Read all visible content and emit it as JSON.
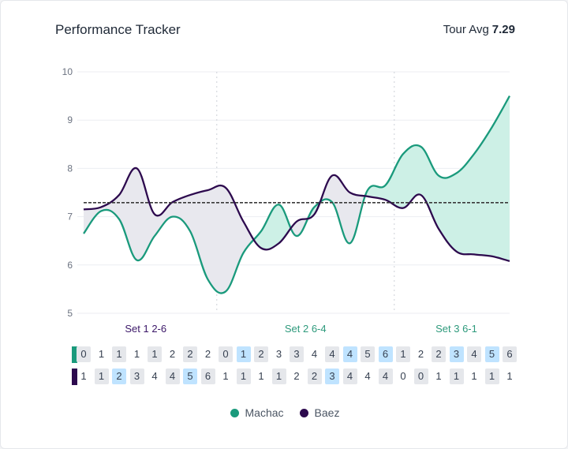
{
  "header": {
    "title": "Performance Tracker",
    "avg_label": "Tour Avg",
    "avg_value": "7.29"
  },
  "colors": {
    "machac": "#1a9a7c",
    "baez": "#2d0a4e",
    "machac_fill": "#cdf0e6",
    "baez_fill": "#e8e8ee",
    "set_loss": "#3b1768",
    "set_win": "#2e9a7c"
  },
  "chart_data": {
    "type": "line",
    "title": "Performance Tracker",
    "ylim": [
      5,
      10
    ],
    "yticks": [
      "5",
      "6",
      "7",
      "8",
      "9",
      "10"
    ],
    "reference_line": {
      "label": "Tour Avg",
      "value": 7.29
    },
    "x": [
      1,
      2,
      3,
      4,
      5,
      6,
      7,
      8,
      9,
      10,
      11,
      12,
      13,
      14,
      15,
      16,
      17,
      18,
      19,
      20,
      21,
      22,
      23,
      24,
      25
    ],
    "series": [
      {
        "name": "Machac",
        "values": [
          6.65,
          7.12,
          6.95,
          6.1,
          6.6,
          7.0,
          6.7,
          5.7,
          5.45,
          6.25,
          6.7,
          7.25,
          6.6,
          7.2,
          7.3,
          6.45,
          7.55,
          7.65,
          8.3,
          8.45,
          7.85,
          7.9,
          8.3,
          8.85,
          9.5
        ]
      },
      {
        "name": "Baez",
        "values": [
          7.15,
          7.2,
          7.45,
          8.0,
          7.05,
          7.3,
          7.45,
          7.55,
          7.6,
          6.9,
          6.35,
          6.45,
          6.9,
          7.05,
          7.85,
          7.5,
          7.42,
          7.35,
          7.18,
          7.45,
          6.75,
          6.28,
          6.22,
          6.18,
          6.08
        ]
      }
    ],
    "sets": [
      {
        "label": "Set 1 2-6",
        "winner": "Baez"
      },
      {
        "label": "Set 2 6-4",
        "winner": "Machac"
      },
      {
        "label": "Set 3 6-1",
        "winner": "Machac"
      }
    ],
    "set_boundaries_after_index": [
      7,
      17
    ],
    "legend": [
      "Machac",
      "Baez"
    ],
    "legend_position": "bottom"
  },
  "scores": {
    "machac": [
      {
        "v": "0",
        "s": "g"
      },
      {
        "v": "1",
        "s": "n"
      },
      {
        "v": "1",
        "s": "g"
      },
      {
        "v": "1",
        "s": "n"
      },
      {
        "v": "1",
        "s": "g"
      },
      {
        "v": "2",
        "s": "n"
      },
      {
        "v": "2",
        "s": "g"
      },
      {
        "v": "2",
        "s": "n"
      },
      {
        "v": "0",
        "s": "g"
      },
      {
        "v": "1",
        "s": "b"
      },
      {
        "v": "2",
        "s": "g"
      },
      {
        "v": "3",
        "s": "n"
      },
      {
        "v": "3",
        "s": "g"
      },
      {
        "v": "4",
        "s": "n"
      },
      {
        "v": "4",
        "s": "g"
      },
      {
        "v": "4",
        "s": "b"
      },
      {
        "v": "5",
        "s": "g"
      },
      {
        "v": "6",
        "s": "b"
      },
      {
        "v": "1",
        "s": "g"
      },
      {
        "v": "2",
        "s": "n"
      },
      {
        "v": "2",
        "s": "g"
      },
      {
        "v": "3",
        "s": "b"
      },
      {
        "v": "4",
        "s": "g"
      },
      {
        "v": "5",
        "s": "b"
      },
      {
        "v": "6",
        "s": "g"
      }
    ],
    "baez": [
      {
        "v": "1",
        "s": "n"
      },
      {
        "v": "1",
        "s": "g"
      },
      {
        "v": "2",
        "s": "b"
      },
      {
        "v": "3",
        "s": "g"
      },
      {
        "v": "4",
        "s": "n"
      },
      {
        "v": "4",
        "s": "g"
      },
      {
        "v": "5",
        "s": "b"
      },
      {
        "v": "6",
        "s": "g"
      },
      {
        "v": "1",
        "s": "n"
      },
      {
        "v": "1",
        "s": "g"
      },
      {
        "v": "1",
        "s": "n"
      },
      {
        "v": "1",
        "s": "g"
      },
      {
        "v": "2",
        "s": "n"
      },
      {
        "v": "2",
        "s": "g"
      },
      {
        "v": "3",
        "s": "b"
      },
      {
        "v": "4",
        "s": "g"
      },
      {
        "v": "4",
        "s": "n"
      },
      {
        "v": "4",
        "s": "g"
      },
      {
        "v": "0",
        "s": "n"
      },
      {
        "v": "0",
        "s": "g"
      },
      {
        "v": "1",
        "s": "n"
      },
      {
        "v": "1",
        "s": "g"
      },
      {
        "v": "1",
        "s": "n"
      },
      {
        "v": "1",
        "s": "g"
      },
      {
        "v": "1",
        "s": "n"
      }
    ]
  }
}
